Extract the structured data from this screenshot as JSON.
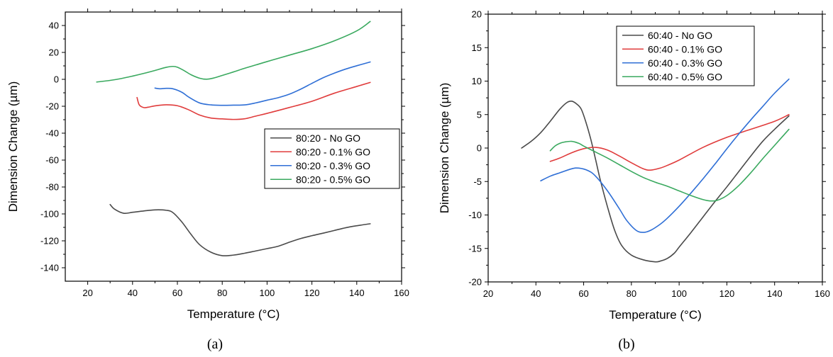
{
  "chart_data": [
    {
      "type": "line",
      "caption": "(a)",
      "xlabel": "Temperature (°C)",
      "ylabel": "Dimension Change (µm)",
      "xlim": [
        10,
        160
      ],
      "ylim": [
        -150,
        50
      ],
      "xticks": [
        20,
        40,
        60,
        80,
        100,
        120,
        140,
        160
      ],
      "yticks": [
        -140,
        -120,
        -100,
        -80,
        -60,
        -40,
        -20,
        0,
        20,
        40
      ],
      "legend_position": "center-right",
      "series": [
        {
          "name": "80:20 - No GO",
          "color": "#4a4a4a",
          "x": [
            30,
            32,
            36,
            40,
            45,
            50,
            55,
            58,
            62,
            66,
            70,
            75,
            80,
            85,
            90,
            95,
            100,
            105,
            110,
            115,
            120,
            125,
            130,
            135,
            140,
            146
          ],
          "y": [
            -93,
            -96.5,
            -99.5,
            -98.8,
            -97.8,
            -97,
            -97.3,
            -99,
            -106,
            -115,
            -123,
            -128.5,
            -131,
            -130.6,
            -129.2,
            -127.5,
            -125.8,
            -124,
            -121,
            -118.3,
            -116.2,
            -114.3,
            -112.3,
            -110.3,
            -108.8,
            -107.3
          ]
        },
        {
          "name": "80:20 - 0.1% GO",
          "color": "#e03c3c",
          "x": [
            42,
            43,
            45,
            47,
            50,
            55,
            60,
            65,
            70,
            75,
            80,
            85,
            90,
            95,
            100,
            110,
            120,
            130,
            140,
            146
          ],
          "y": [
            -13.5,
            -19,
            -21,
            -20.7,
            -19.7,
            -18.9,
            -19.6,
            -22.6,
            -26.6,
            -28.8,
            -29.4,
            -29.8,
            -29.3,
            -27.3,
            -25.3,
            -20.9,
            -16.3,
            -10.3,
            -5.3,
            -2.3
          ]
        },
        {
          "name": "80:20 - 0.3% GO",
          "color": "#2f6fd6",
          "x": [
            50,
            52,
            55,
            58,
            62,
            65,
            70,
            75,
            80,
            85,
            90,
            95,
            100,
            105,
            110,
            115,
            120,
            125,
            130,
            135,
            140,
            146
          ],
          "y": [
            -6.5,
            -7,
            -6.7,
            -7,
            -9.6,
            -13.1,
            -17.6,
            -19,
            -19.3,
            -19.2,
            -19,
            -17.5,
            -15.5,
            -13.6,
            -11,
            -7.3,
            -3,
            1.2,
            4.6,
            7.6,
            10.1,
            12.9
          ]
        },
        {
          "name": "80:20 - 0.5% GO",
          "color": "#3aa95f",
          "x": [
            24,
            30,
            35,
            40,
            45,
            50,
            55,
            58,
            60,
            63,
            66,
            70,
            73,
            76,
            80,
            85,
            90,
            95,
            100,
            110,
            120,
            130,
            140,
            146
          ],
          "y": [
            -2,
            -0.8,
            0.6,
            2.4,
            4.4,
            6.6,
            8.9,
            9.6,
            9,
            6.5,
            3.5,
            0.8,
            0.1,
            0.9,
            2.9,
            5.5,
            8.2,
            10.7,
            13.2,
            18,
            22.8,
            28.6,
            36,
            43
          ]
        }
      ]
    },
    {
      "type": "line",
      "caption": "(b)",
      "xlabel": "Temperature (°C)",
      "ylabel": "Dimension Change (µm)",
      "xlim": [
        20,
        160
      ],
      "ylim": [
        -20,
        20
      ],
      "xticks": [
        20,
        40,
        60,
        80,
        100,
        120,
        140,
        160
      ],
      "yticks": [
        -20,
        -15,
        -10,
        -5,
        0,
        5,
        10,
        15,
        20
      ],
      "legend_position": "top-center",
      "series": [
        {
          "name": "60:40 - No GO",
          "color": "#4a4a4a",
          "x": [
            34,
            38,
            42,
            46,
            50,
            53,
            55,
            57,
            59,
            61,
            63,
            65,
            67,
            70,
            73,
            76,
            80,
            85,
            90,
            92,
            95,
            98,
            100,
            105,
            110,
            115,
            120,
            125,
            130,
            135,
            140,
            146
          ],
          "y": [
            0,
            1,
            2.3,
            4,
            5.8,
            6.8,
            7,
            6.6,
            5.8,
            3.8,
            1.3,
            -1.7,
            -4.8,
            -8.8,
            -12.3,
            -14.6,
            -16,
            -16.7,
            -17,
            -16.9,
            -16.5,
            -15.7,
            -14.8,
            -12.6,
            -10.3,
            -8,
            -5.8,
            -3.5,
            -1.2,
            1,
            2.8,
            4.8
          ]
        },
        {
          "name": "60:40 - 0.1% GO",
          "color": "#e03c3c",
          "x": [
            46,
            50,
            55,
            60,
            65,
            70,
            75,
            80,
            85,
            88,
            92,
            95,
            100,
            110,
            120,
            130,
            140,
            146
          ],
          "y": [
            -2,
            -1.5,
            -0.7,
            -0.1,
            0.1,
            -0.3,
            -1.2,
            -2.2,
            -3.1,
            -3.3,
            -3,
            -2.6,
            -1.8,
            0.1,
            1.6,
            2.8,
            4,
            5
          ]
        },
        {
          "name": "60:40 - 0.3% GO",
          "color": "#2f6fd6",
          "x": [
            42,
            46,
            50,
            55,
            58,
            62,
            65,
            70,
            75,
            78,
            82,
            85,
            88,
            92,
            95,
            100,
            105,
            110,
            115,
            120,
            125,
            130,
            135,
            140,
            146
          ],
          "y": [
            -4.9,
            -4.2,
            -3.7,
            -3.1,
            -3,
            -3.4,
            -4.2,
            -6.4,
            -9.1,
            -10.8,
            -12.3,
            -12.6,
            -12.3,
            -11.4,
            -10.5,
            -8.7,
            -6.7,
            -4.6,
            -2.4,
            -0.1,
            2.1,
            4.2,
            6.2,
            8.2,
            10.3
          ]
        },
        {
          "name": "60:40 - 0.5% GO",
          "color": "#3aa95f",
          "x": [
            46,
            48,
            50,
            52,
            55,
            58,
            60,
            65,
            70,
            75,
            80,
            85,
            90,
            95,
            100,
            105,
            110,
            113,
            116,
            120,
            125,
            130,
            135,
            140,
            146
          ],
          "y": [
            -0.4,
            0.3,
            0.7,
            0.9,
            1,
            0.7,
            0.3,
            -0.6,
            -1.5,
            -2.5,
            -3.5,
            -4.4,
            -5.1,
            -5.7,
            -6.4,
            -7.1,
            -7.7,
            -7.9,
            -7.8,
            -7.1,
            -5.6,
            -3.7,
            -1.6,
            0.4,
            2.8
          ]
        }
      ]
    }
  ]
}
